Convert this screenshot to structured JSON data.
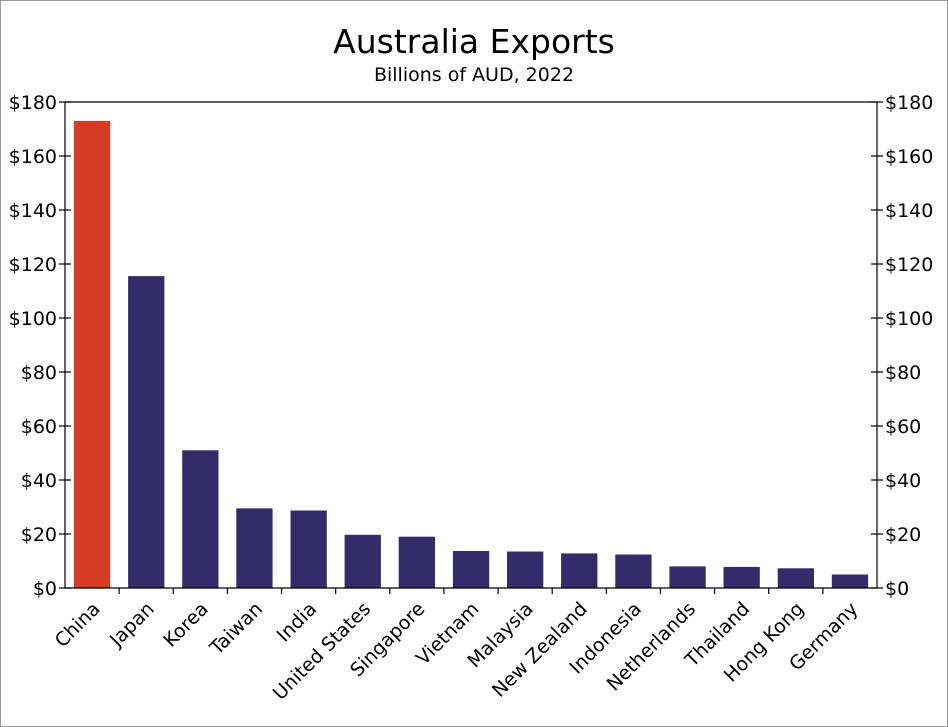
{
  "chart_data": {
    "type": "bar",
    "title": "Australia Exports",
    "subtitle": "Billions of AUD, 2022",
    "categories": [
      "China",
      "Japan",
      "Korea",
      "Taiwan",
      "India",
      "United States",
      "Singapore",
      "Vietnam",
      "Malaysia",
      "New Zealand",
      "Indonesia",
      "Netherlands",
      "Thailand",
      "Hong Kong",
      "Germany"
    ],
    "values": [
      173,
      115.5,
      51,
      29.5,
      28.7,
      19.7,
      19,
      13.7,
      13.5,
      12.8,
      12.4,
      8,
      7.8,
      7.3,
      5
    ],
    "ylim": [
      0,
      180
    ],
    "yticks": [
      0,
      20,
      40,
      60,
      80,
      100,
      120,
      140,
      160,
      180
    ],
    "ytick_labels": [
      "$0",
      "$20",
      "$40",
      "$60",
      "$80",
      "$100",
      "$120",
      "$140",
      "$160",
      "$180"
    ],
    "highlight_category": "China",
    "colors": {
      "highlight": "#d63c24",
      "bar": "#342c6a"
    },
    "grid": false,
    "axes": "left-and-right"
  }
}
